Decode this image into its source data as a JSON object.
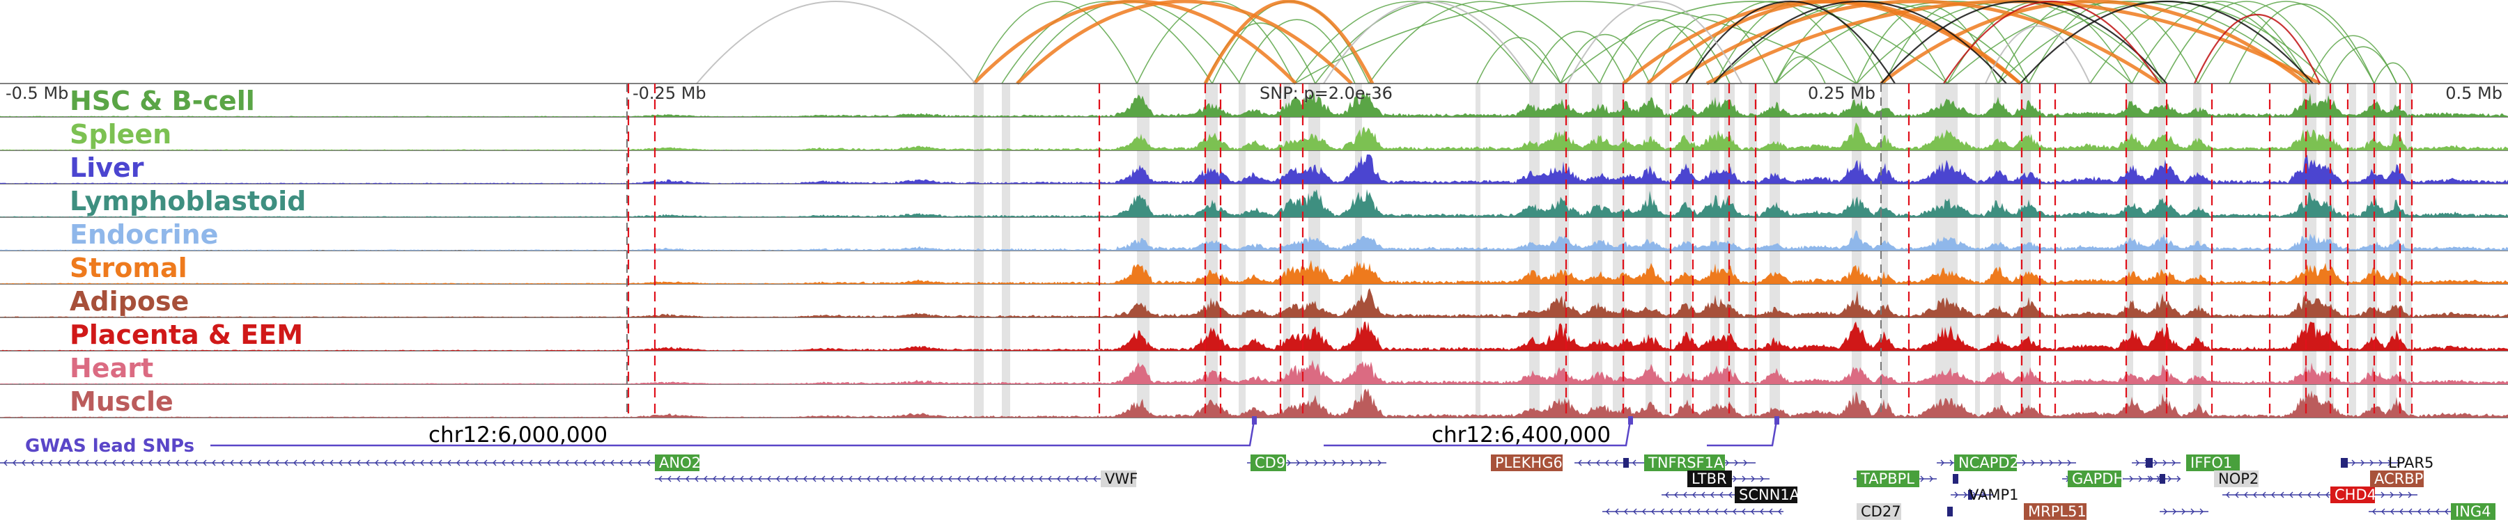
{
  "ruler": {
    "ticks": [
      {
        "label": "-0.5 Mb",
        "pos": -0.5
      },
      {
        "label": "-0.25 Mb",
        "pos": -0.25
      },
      {
        "label": "0.25 Mb",
        "pos": 0.25
      },
      {
        "label": "0.5 Mb",
        "pos": 0.5
      }
    ],
    "snp_label": "SNP: p=2.0e-36"
  },
  "tracks": [
    {
      "label": "HSC & B-cell",
      "color": "#5aa546",
      "scale": 1.0
    },
    {
      "label": "Spleen",
      "color": "#7cc152",
      "scale": 0.95
    },
    {
      "label": "Liver",
      "color": "#4b45d0",
      "scale": 0.9
    },
    {
      "label": "Lymphoblastoid",
      "color": "#3e8f80",
      "scale": 0.95
    },
    {
      "label": "Endocrine",
      "color": "#8fb7ea",
      "scale": 0.6
    },
    {
      "label": "Stromal",
      "color": "#ee7a1d",
      "scale": 0.95
    },
    {
      "label": "Adipose",
      "color": "#a7503a",
      "scale": 0.95
    },
    {
      "label": "Placenta & EEM",
      "color": "#d01818",
      "scale": 0.95
    },
    {
      "label": "Heart",
      "color": "#db6b82",
      "scale": 0.85
    },
    {
      "label": "Muscle",
      "color": "#bb5c5c",
      "scale": 0.95
    }
  ],
  "gwas": {
    "label": "GWAS lead SNPs",
    "color": "#5a46c8",
    "coords": [
      "chr12:6,000,000",
      "chr12:6,400,000"
    ]
  },
  "genes": [
    {
      "name": "ANO2",
      "style": "green"
    },
    {
      "name": "VWF",
      "style": "gray"
    },
    {
      "name": "CD9",
      "style": "green"
    },
    {
      "name": "PLEKHG6",
      "style": "brown"
    },
    {
      "name": "TNFRSF1A",
      "style": "green"
    },
    {
      "name": "LTBR",
      "style": "black"
    },
    {
      "name": "SCNN1A",
      "style": "black"
    },
    {
      "name": "TAPBPL",
      "style": "green"
    },
    {
      "name": "CD27",
      "style": "gray"
    },
    {
      "name": "VAMP1",
      "style": "plain"
    },
    {
      "name": "MRPL51",
      "style": "brown"
    },
    {
      "name": "NCAPD2",
      "style": "green"
    },
    {
      "name": "GAPDH",
      "style": "green"
    },
    {
      "name": "IFFO1",
      "style": "green"
    },
    {
      "name": "NOP2",
      "style": "gray"
    },
    {
      "name": "CHD4",
      "style": "red"
    },
    {
      "name": "LPAR5",
      "style": "plain"
    },
    {
      "name": "ACRBP",
      "style": "brown"
    },
    {
      "name": "ING4",
      "style": "green"
    }
  ],
  "loop_colors": {
    "green": "#5aa546",
    "orange": "#ee7a1d",
    "black": "#111111",
    "red": "#c01010",
    "gray": "#b8b8b8"
  },
  "highlight_color": "#d0d0d0",
  "marker_color": "#e0101a"
}
